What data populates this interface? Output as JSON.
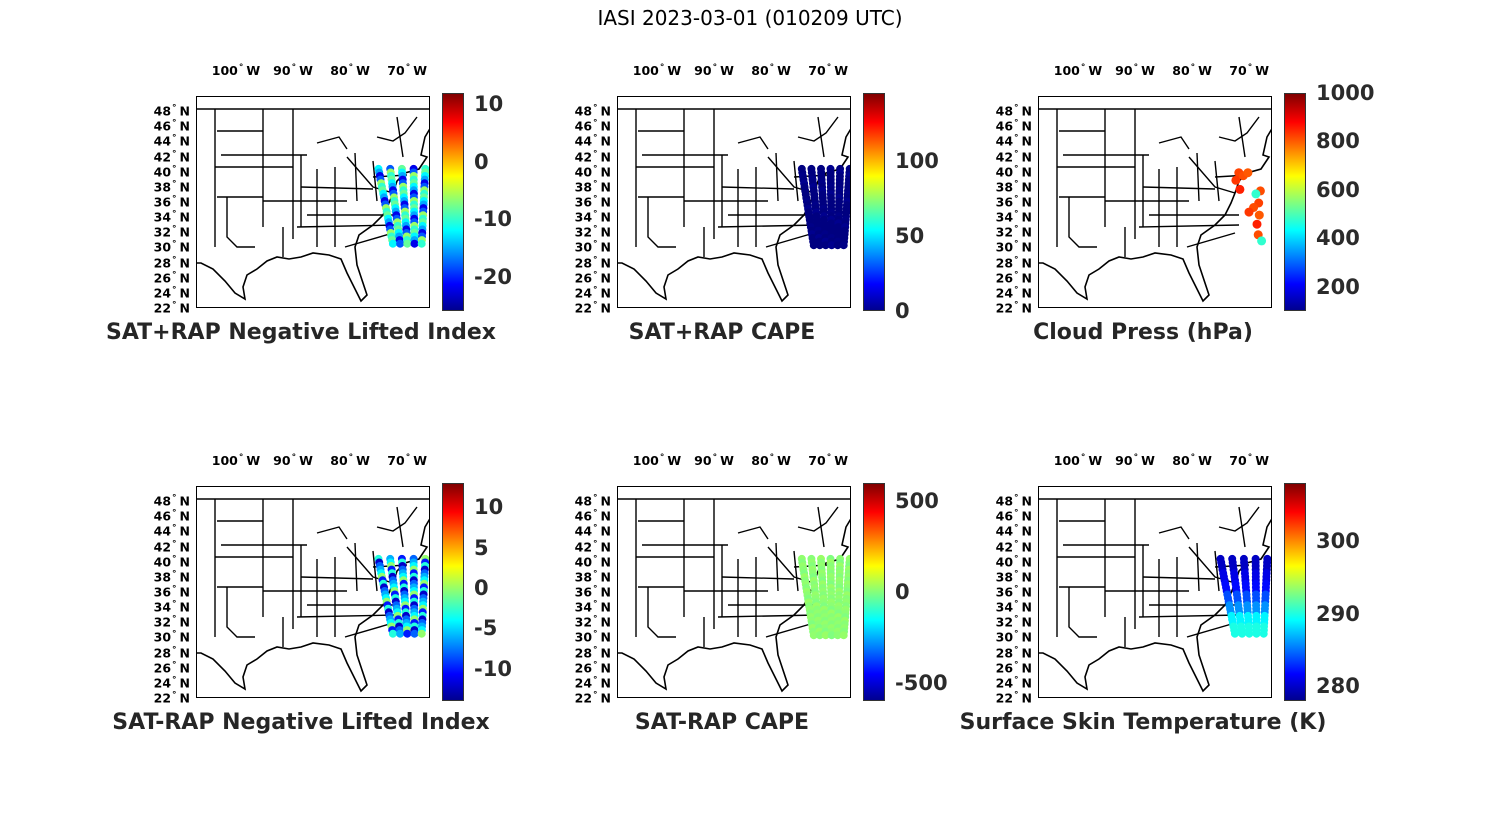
{
  "figure_title": "IASI 2023-03-01 (010209 UTC)",
  "map_ticks": {
    "lon": [
      {
        "value": 100,
        "text": "100",
        "hemi": "W"
      },
      {
        "value": 90,
        "text": "90",
        "hemi": "W"
      },
      {
        "value": 80,
        "text": "80",
        "hemi": "W"
      },
      {
        "value": 70,
        "text": "70",
        "hemi": "W"
      }
    ],
    "lat": [
      {
        "value": 48,
        "text": "48",
        "hemi": "N"
      },
      {
        "value": 46,
        "text": "46",
        "hemi": "N"
      },
      {
        "value": 44,
        "text": "44",
        "hemi": "N"
      },
      {
        "value": 42,
        "text": "42",
        "hemi": "N"
      },
      {
        "value": 40,
        "text": "40",
        "hemi": "N"
      },
      {
        "value": 38,
        "text": "38",
        "hemi": "N"
      },
      {
        "value": 36,
        "text": "36",
        "hemi": "N"
      },
      {
        "value": 34,
        "text": "34",
        "hemi": "N"
      },
      {
        "value": 32,
        "text": "32",
        "hemi": "N"
      },
      {
        "value": 30,
        "text": "30",
        "hemi": "N"
      },
      {
        "value": 28,
        "text": "28",
        "hemi": "N"
      },
      {
        "value": 26,
        "text": "26",
        "hemi": "N"
      },
      {
        "value": 24,
        "text": "24",
        "hemi": "N"
      },
      {
        "value": 22,
        "text": "22",
        "hemi": "N"
      }
    ],
    "lon_range": [
      -107,
      -66
    ],
    "lat_range": [
      22,
      50
    ]
  },
  "panels": [
    {
      "title": "SAT+RAP Negative Lifted Index",
      "cmap": "jet",
      "range": [
        -26,
        12
      ],
      "ticks": [
        {
          "v": 10,
          "t": "10"
        },
        {
          "v": 0,
          "t": "0"
        },
        {
          "v": -10,
          "t": "-10"
        },
        {
          "v": -20,
          "t": "-20"
        }
      ],
      "swath": "inner-east",
      "values": [
        -12,
        -18,
        -8,
        -22,
        -10,
        -15,
        -6
      ]
    },
    {
      "title": "SAT+RAP CAPE",
      "cmap": "jet",
      "range": [
        0,
        145
      ],
      "ticks": [
        {
          "v": 100,
          "t": "100"
        },
        {
          "v": 50,
          "t": "50"
        },
        {
          "v": 0,
          "t": "0"
        }
      ],
      "swath": "coast",
      "values": [
        0,
        0,
        0,
        2,
        0,
        1,
        0
      ]
    },
    {
      "title": "Cloud Press (hPa)",
      "cmap": "jet",
      "range": [
        100,
        1000
      ],
      "ticks": [
        {
          "v": 1000,
          "t": "1000"
        },
        {
          "v": 800,
          "t": "800"
        },
        {
          "v": 600,
          "t": "600"
        },
        {
          "v": 400,
          "t": "400"
        },
        {
          "v": 200,
          "t": "200"
        }
      ],
      "swath": "sparse",
      "values": [
        830,
        820,
        810,
        840,
        860,
        820,
        480
      ]
    },
    {
      "title": "SAT-RAP Negative Lifted Index",
      "cmap": "jet",
      "range": [
        -14,
        13
      ],
      "ticks": [
        {
          "v": 10,
          "t": "10"
        },
        {
          "v": 5,
          "t": "5"
        },
        {
          "v": 0,
          "t": "0"
        },
        {
          "v": -5,
          "t": "-5"
        },
        {
          "v": -10,
          "t": "-10"
        }
      ],
      "swath": "inner-east",
      "values": [
        -3,
        -6,
        -10,
        -8,
        0,
        -12,
        -4
      ]
    },
    {
      "title": "SAT-RAP CAPE",
      "cmap": "jet",
      "range": [
        -600,
        600
      ],
      "ticks": [
        {
          "v": 500,
          "t": "500"
        },
        {
          "v": 0,
          "t": "0"
        },
        {
          "v": -500,
          "t": "-500"
        }
      ],
      "swath": "coast",
      "values": [
        20,
        10,
        30,
        0,
        15,
        25,
        5
      ]
    },
    {
      "title": "Surface Skin Temperature (K)",
      "cmap": "jet",
      "range": [
        278,
        308
      ],
      "ticks": [
        {
          "v": 300,
          "t": "300"
        },
        {
          "v": 290,
          "t": "290"
        },
        {
          "v": 280,
          "t": "280"
        }
      ],
      "swath": "temp",
      "values": [
        280,
        281,
        282,
        284,
        286,
        289,
        290
      ]
    }
  ]
}
